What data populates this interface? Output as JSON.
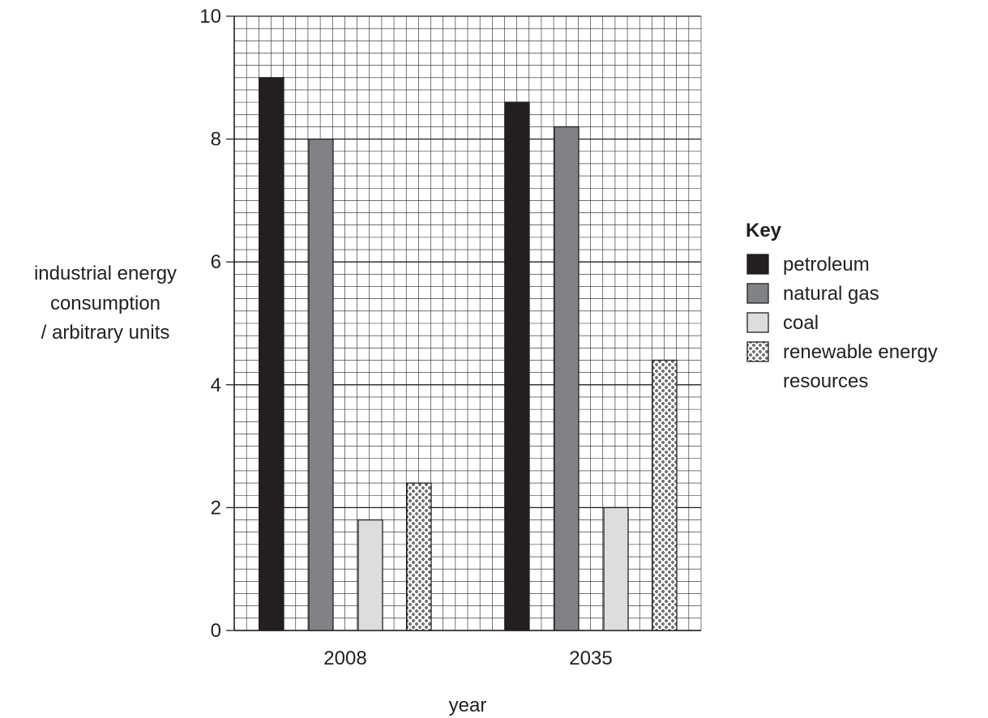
{
  "chart_data": {
    "type": "bar",
    "title": "",
    "xlabel": "year",
    "ylabel_lines": [
      "industrial energy",
      "consumption",
      "/ arbitrary units"
    ],
    "categories": [
      "2008",
      "2035"
    ],
    "ylim": [
      0,
      10
    ],
    "y_ticks": [
      0,
      2,
      4,
      6,
      8,
      10
    ],
    "grid": true,
    "legend_position": "right",
    "legend_title": "Key",
    "series": [
      {
        "name": "petroleum",
        "values": [
          9.0,
          8.6
        ],
        "fill": "#231f20",
        "pattern": "solid"
      },
      {
        "name": "natural gas",
        "values": [
          8.0,
          8.2
        ],
        "fill": "#808285",
        "pattern": "solid"
      },
      {
        "name": "coal",
        "values": [
          1.8,
          2.0
        ],
        "fill": "#dcddde",
        "pattern": "solid"
      },
      {
        "name": "renewable energy resources",
        "legend_lines": [
          "renewable energy",
          "resources"
        ],
        "values": [
          2.4,
          4.4
        ],
        "fill": "#ffffff",
        "pattern": "dots"
      }
    ]
  }
}
